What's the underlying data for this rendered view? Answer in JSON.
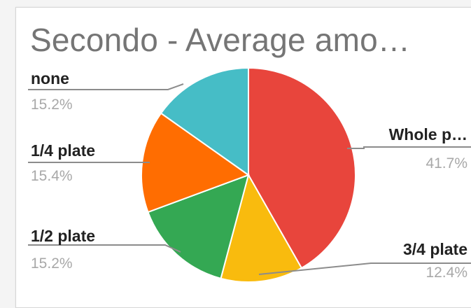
{
  "chart_title": "Secondo -  Average amo…",
  "chart_data": {
    "type": "pie",
    "title": "Secondo -  Average amo…",
    "slices": [
      {
        "label": "Whole p…",
        "value": 41.7,
        "percent_label": "41.7%",
        "color": "#e8453c"
      },
      {
        "label": "3/4 plate",
        "value": 12.4,
        "percent_label": "12.4%",
        "color": "#f9bb0e"
      },
      {
        "label": "1/2 plate",
        "value": 15.2,
        "percent_label": "15.2%",
        "color": "#34a853"
      },
      {
        "label": "1/4 plate",
        "value": 15.4,
        "percent_label": "15.4%",
        "color": "#ff6d01"
      },
      {
        "label": "none",
        "value": 15.2,
        "percent_label": "15.2%",
        "color": "#46bdc6"
      }
    ]
  }
}
